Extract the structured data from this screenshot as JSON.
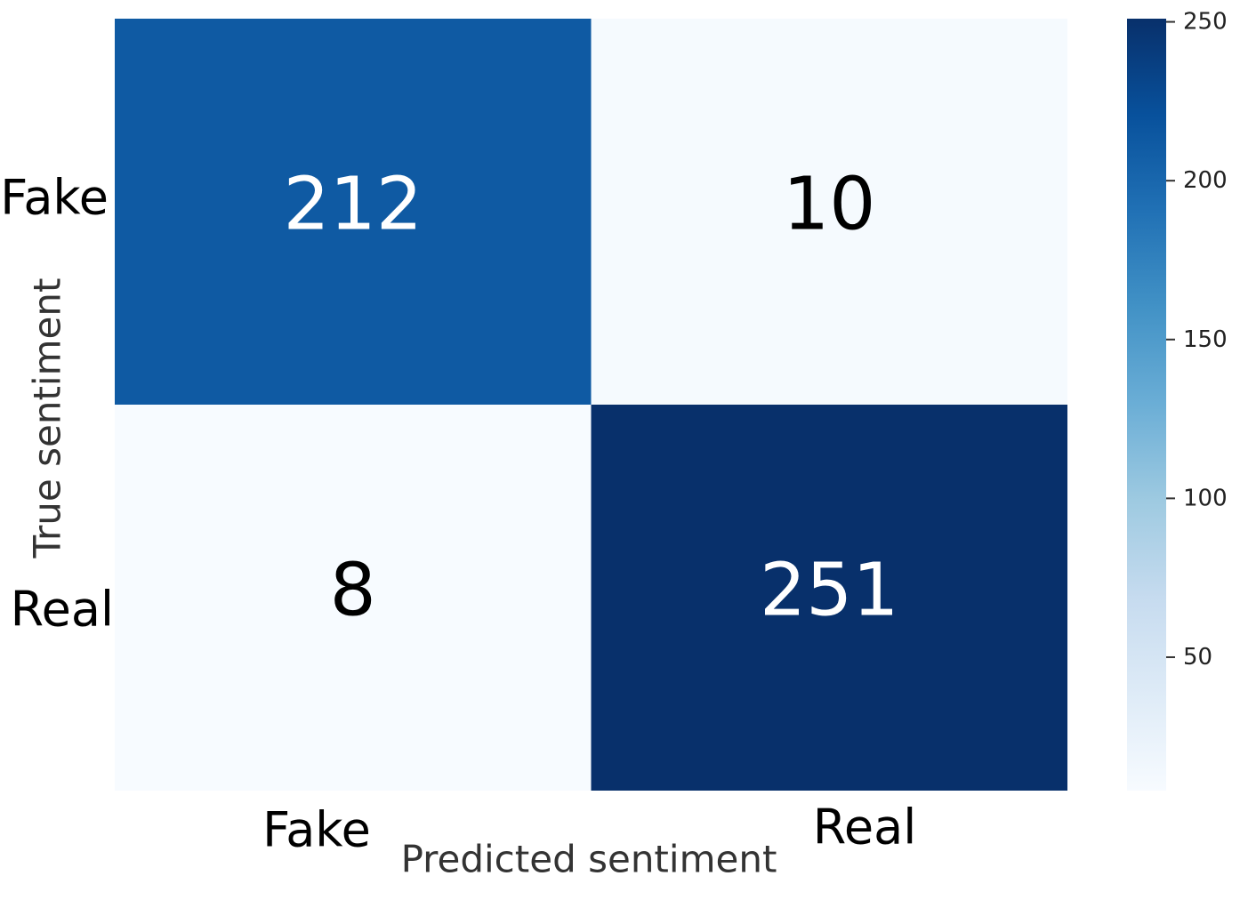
{
  "chart_data": {
    "type": "heatmap",
    "title": "",
    "xlabel": "Predicted sentiment",
    "ylabel": "True sentiment",
    "x_categories": [
      "Fake",
      "Real"
    ],
    "y_categories": [
      "Fake",
      "Real"
    ],
    "values": [
      [
        212,
        10
      ],
      [
        8,
        251
      ]
    ],
    "cell_labels": [
      [
        "212",
        "10"
      ],
      [
        "8",
        "251"
      ]
    ],
    "colorbar": {
      "min": 8,
      "max": 251,
      "ticks": [
        50,
        100,
        150,
        200,
        250
      ],
      "tick_labels": [
        "50",
        "100",
        "150",
        "200",
        "250"
      ]
    },
    "colormap_stops": [
      "#f7fbff",
      "#deebf7",
      "#c6dbef",
      "#9ecae1",
      "#6baed6",
      "#4292c6",
      "#2171b5",
      "#08519c",
      "#08306b"
    ]
  }
}
